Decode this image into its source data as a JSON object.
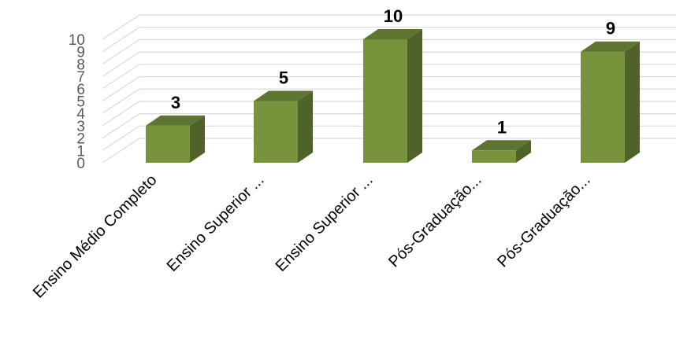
{
  "chart_data": {
    "type": "bar",
    "categories": [
      "Ensino Médio Completo",
      "Ensino Superior ...",
      "Ensino Superior ...",
      "Pós-Graduação...",
      "Pós-Graduação..."
    ],
    "values": [
      3,
      5,
      10,
      1,
      9
    ],
    "data_labels": [
      "3",
      "5",
      "10",
      "1",
      "9"
    ],
    "title": "",
    "xlabel": "",
    "ylabel": "",
    "ylim": [
      0,
      10
    ],
    "yticks": [
      "0",
      "1",
      "2",
      "3",
      "4",
      "5",
      "6",
      "7",
      "8",
      "9",
      "10"
    ],
    "grid": true,
    "legend": "none",
    "style": "3d-column",
    "colors": {
      "front": "#77933c",
      "side": "#4f6228",
      "top": "#5d7530",
      "grid": "#d9d9d9"
    }
  }
}
